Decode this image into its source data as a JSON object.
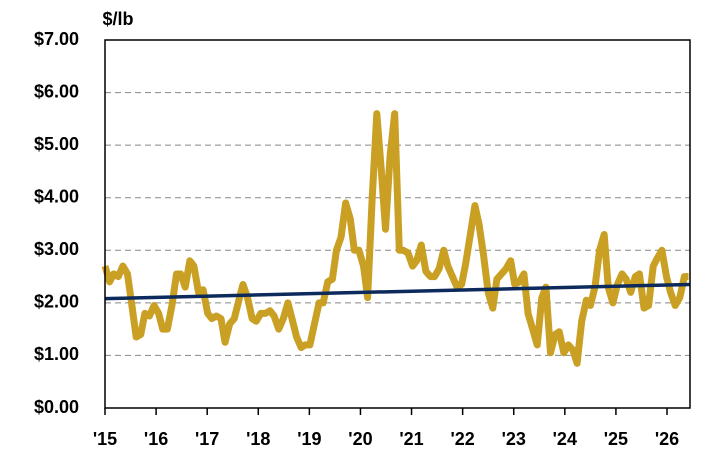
{
  "chart_data": {
    "type": "line",
    "y_label": "$/lb",
    "x": [
      2015.0,
      2015.09,
      2015.17,
      2015.26,
      2015.35,
      2015.44,
      2015.52,
      2015.61,
      2015.7,
      2015.78,
      2015.87,
      2015.96,
      2016.05,
      2016.13,
      2016.22,
      2016.31,
      2016.4,
      2016.48,
      2016.57,
      2016.66,
      2016.74,
      2016.83,
      2016.92,
      2017.01,
      2017.09,
      2017.18,
      2017.27,
      2017.35,
      2017.44,
      2017.53,
      2017.62,
      2017.7,
      2017.79,
      2017.88,
      2017.96,
      2018.05,
      2018.14,
      2018.23,
      2018.31,
      2018.4,
      2018.49,
      2018.58,
      2018.66,
      2018.75,
      2018.84,
      2018.92,
      2019.01,
      2019.1,
      2019.19,
      2019.27,
      2019.36,
      2019.45,
      2019.53,
      2019.62,
      2019.71,
      2019.8,
      2019.88,
      2019.97,
      2020.06,
      2020.14,
      2020.23,
      2020.32,
      2020.41,
      2020.49,
      2020.58,
      2020.67,
      2020.76,
      2020.84,
      2020.93,
      2021.02,
      2021.1,
      2021.19,
      2021.28,
      2021.37,
      2021.45,
      2021.54,
      2021.63,
      2021.71,
      2021.8,
      2021.89,
      2021.98,
      2022.06,
      2022.15,
      2022.24,
      2022.32,
      2022.41,
      2022.5,
      2022.59,
      2022.67,
      2022.76,
      2022.85,
      2022.94,
      2023.02,
      2023.11,
      2023.2,
      2023.28,
      2023.37,
      2023.46,
      2023.55,
      2023.63,
      2023.72,
      2023.81,
      2023.89,
      2023.98,
      2024.07,
      2024.16,
      2024.24,
      2024.33,
      2024.42,
      2024.5,
      2024.59,
      2024.68,
      2024.77,
      2024.85,
      2024.94,
      2025.03,
      2025.12,
      2025.2,
      2025.29,
      2025.38,
      2025.46,
      2025.55,
      2025.64,
      2025.73,
      2025.81,
      2025.9,
      2025.99,
      2026.07,
      2026.16,
      2026.25,
      2026.34,
      2026.42
    ],
    "series": [
      {
        "color": "#c9a023",
        "values": [
          2.7,
          2.4,
          2.55,
          2.5,
          2.7,
          2.55,
          2.0,
          1.35,
          1.4,
          1.8,
          1.75,
          1.95,
          1.8,
          1.5,
          1.5,
          1.95,
          2.55,
          2.55,
          2.3,
          2.8,
          2.7,
          2.2,
          2.25,
          1.8,
          1.7,
          1.75,
          1.7,
          1.25,
          1.6,
          1.7,
          2.05,
          2.35,
          2.1,
          1.7,
          1.65,
          1.8,
          1.8,
          1.85,
          1.75,
          1.5,
          1.7,
          2.0,
          1.7,
          1.35,
          1.15,
          1.2,
          1.2,
          1.6,
          2.0,
          2.0,
          2.4,
          2.45,
          3.0,
          3.25,
          3.9,
          3.6,
          3.0,
          3.0,
          2.7,
          2.1,
          4.0,
          5.6,
          4.5,
          3.4,
          4.8,
          5.6,
          3.0,
          3.0,
          2.95,
          2.7,
          2.8,
          3.1,
          2.6,
          2.5,
          2.5,
          2.65,
          3.0,
          2.7,
          2.5,
          2.3,
          2.35,
          2.75,
          3.3,
          3.85,
          3.5,
          2.9,
          2.2,
          1.9,
          2.45,
          2.55,
          2.65,
          2.8,
          2.35,
          2.4,
          2.55,
          1.8,
          1.5,
          1.2,
          2.1,
          2.3,
          1.05,
          1.4,
          1.45,
          1.05,
          1.2,
          1.1,
          0.85,
          1.65,
          2.05,
          1.95,
          2.3,
          3.0,
          3.3,
          2.3,
          2.0,
          2.35,
          2.55,
          2.45,
          2.2,
          2.5,
          2.55,
          1.9,
          1.95,
          2.7,
          2.85,
          3.0,
          2.5,
          2.2,
          1.95,
          2.1,
          2.5,
          2.5
        ]
      }
    ],
    "trend": {
      "color": "#0d2a5c",
      "x": [
        2015,
        2026.45
      ],
      "values": [
        2.08,
        2.35
      ]
    },
    "xlim": [
      2015,
      2026.45
    ],
    "xticks": [
      {
        "value": 2015,
        "label": "'15"
      },
      {
        "value": 2016,
        "label": "'16"
      },
      {
        "value": 2017,
        "label": "'17"
      },
      {
        "value": 2018,
        "label": "'18"
      },
      {
        "value": 2019,
        "label": "'19"
      },
      {
        "value": 2020,
        "label": "'20"
      },
      {
        "value": 2021,
        "label": "'21"
      },
      {
        "value": 2022,
        "label": "'22"
      },
      {
        "value": 2023,
        "label": "'23"
      },
      {
        "value": 2024,
        "label": "'24"
      },
      {
        "value": 2025,
        "label": "'25"
      },
      {
        "value": 2026,
        "label": "'26"
      }
    ],
    "ylim": [
      0,
      7
    ],
    "yticks": [
      {
        "value": 0,
        "label": "$0.00"
      },
      {
        "value": 1,
        "label": "$1.00"
      },
      {
        "value": 2,
        "label": "$2.00"
      },
      {
        "value": 3,
        "label": "$3.00"
      },
      {
        "value": 4,
        "label": "$4.00"
      },
      {
        "value": 5,
        "label": "$5.00"
      },
      {
        "value": 6,
        "label": "$6.00"
      },
      {
        "value": 7,
        "label": "$7.00"
      }
    ],
    "grid": true
  }
}
